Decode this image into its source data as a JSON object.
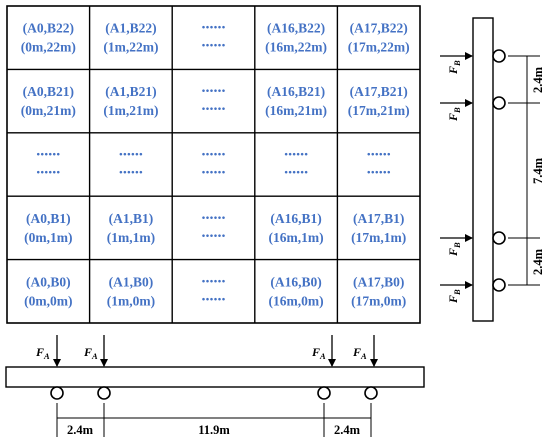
{
  "grid": {
    "text_color": "#4472C4",
    "rows": [
      [
        {
          "l1": "(A0,B22)",
          "l2": "(0m,22m)"
        },
        {
          "l1": "(A1,B22)",
          "l2": "(1m,22m)"
        },
        {
          "dots": "......"
        },
        {
          "l1": "(A16,B22)",
          "l2": "(16m,22m)"
        },
        {
          "l1": "(A17,B22)",
          "l2": "(17m,22m)"
        }
      ],
      [
        {
          "l1": "(A0,B21)",
          "l2": "(0m,21m)"
        },
        {
          "l1": "(A1,B21)",
          "l2": "(1m,21m)"
        },
        {
          "dots": "......"
        },
        {
          "l1": "(A16,B21)",
          "l2": "(16m,21m)"
        },
        {
          "l1": "(A17,B21)",
          "l2": "(17m,21m)"
        }
      ],
      [
        {
          "dots": "......"
        },
        {
          "dots": "......"
        },
        {
          "dots": "......"
        },
        {
          "dots": "......"
        },
        {
          "dots": "......"
        }
      ],
      [
        {
          "l1": "(A0,B1)",
          "l2": "(0m,1m)"
        },
        {
          "l1": "(A1,B1)",
          "l2": "(1m,1m)"
        },
        {
          "dots": "......"
        },
        {
          "l1": "(A16,B1)",
          "l2": "(16m,1m)"
        },
        {
          "l1": "(A17,B1)",
          "l2": "(17m,1m)"
        }
      ],
      [
        {
          "l1": "(A0,B0)",
          "l2": "(0m,0m)"
        },
        {
          "l1": "(A1,B0)",
          "l2": "(1m,0m)"
        },
        {
          "dots": "......"
        },
        {
          "l1": "(A16,B0)",
          "l2": "(16m,0m)"
        },
        {
          "l1": "(A17,B0)",
          "l2": "(17m,0m)"
        }
      ]
    ]
  },
  "horizontal_beam": {
    "force_symbol": "F",
    "force_subscript": "A",
    "spans": [
      "2.4m",
      "11.9m",
      "2.4m"
    ]
  },
  "vertical_beam": {
    "force_symbol": "F",
    "force_subscript": "B",
    "spans": [
      "2.4m",
      "7.4m",
      "2.4m"
    ]
  }
}
